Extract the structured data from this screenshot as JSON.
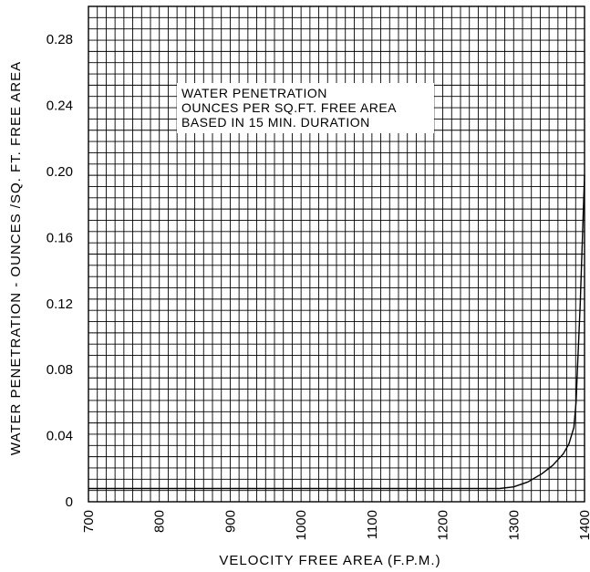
{
  "chart_data": {
    "type": "line",
    "title": "",
    "xlabel": "VELOCITY FREE AREA (F.P.M.)",
    "ylabel": "WATER PENETRATION - OUNCES /SQ. FT.  FREE AREA",
    "xlim": [
      700,
      1400
    ],
    "ylim": [
      0,
      0.3
    ],
    "x_ticks": [
      "700",
      "800",
      "900",
      "1000",
      "1100",
      "1200",
      "1300",
      "1400"
    ],
    "y_ticks": [
      "0",
      "0.04",
      "0.08",
      "0.12",
      "0.16",
      "0.20",
      "0.24",
      "0.28"
    ],
    "grid": true,
    "annotation": [
      "WATER PENETRATION",
      "OUNCES PER SQ.FT. FREE AREA",
      "BASED IN 15 MIN. DURATION"
    ],
    "series": [
      {
        "x": [
          700,
          1280,
          1300,
          1320,
          1340,
          1355,
          1370,
          1378,
          1385,
          1388,
          1390,
          1394,
          1397,
          1400
        ],
        "y": [
          0.008,
          0.008,
          0.009,
          0.012,
          0.017,
          0.022,
          0.029,
          0.035,
          0.045,
          0.06,
          0.08,
          0.12,
          0.16,
          0.198
        ]
      }
    ]
  }
}
